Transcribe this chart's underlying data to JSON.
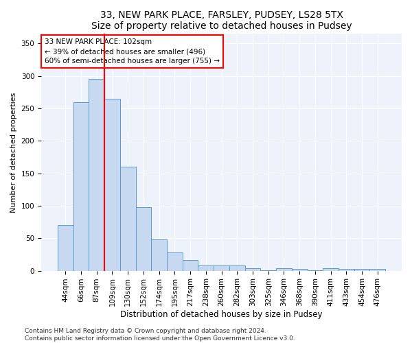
{
  "title1": "33, NEW PARK PLACE, FARSLEY, PUDSEY, LS28 5TX",
  "title2": "Size of property relative to detached houses in Pudsey",
  "xlabel": "Distribution of detached houses by size in Pudsey",
  "ylabel": "Number of detached properties",
  "bar_labels": [
    "44sqm",
    "66sqm",
    "87sqm",
    "109sqm",
    "130sqm",
    "152sqm",
    "174sqm",
    "195sqm",
    "217sqm",
    "238sqm",
    "260sqm",
    "282sqm",
    "303sqm",
    "325sqm",
    "346sqm",
    "368sqm",
    "390sqm",
    "411sqm",
    "433sqm",
    "454sqm",
    "476sqm"
  ],
  "bar_heights": [
    70,
    260,
    295,
    265,
    160,
    98,
    48,
    28,
    17,
    8,
    8,
    8,
    4,
    1,
    4,
    3,
    1,
    4,
    3,
    3,
    3
  ],
  "bar_color": "#c6d9f0",
  "bar_edge_color": "#5b9bd5",
  "vline_color": "red",
  "vline_index": 3,
  "annotation_line1": "33 NEW PARK PLACE: 102sqm",
  "annotation_line2": "← 39% of detached houses are smaller (496)",
  "annotation_line3": "60% of semi-detached houses are larger (755) →",
  "annotation_box_color": "white",
  "annotation_box_edge": "red",
  "ylim": [
    0,
    365
  ],
  "yticks": [
    0,
    50,
    100,
    150,
    200,
    250,
    300,
    350
  ],
  "bg_color": "#eef2fa",
  "grid_color": "white",
  "footnote": "Contains HM Land Registry data © Crown copyright and database right 2024.\nContains public sector information licensed under the Open Government Licence v3.0.",
  "title1_fontsize": 10,
  "title2_fontsize": 9,
  "xlabel_fontsize": 8.5,
  "ylabel_fontsize": 8,
  "tick_fontsize": 7.5,
  "annotation_fontsize": 7.5,
  "footnote_fontsize": 6.5
}
